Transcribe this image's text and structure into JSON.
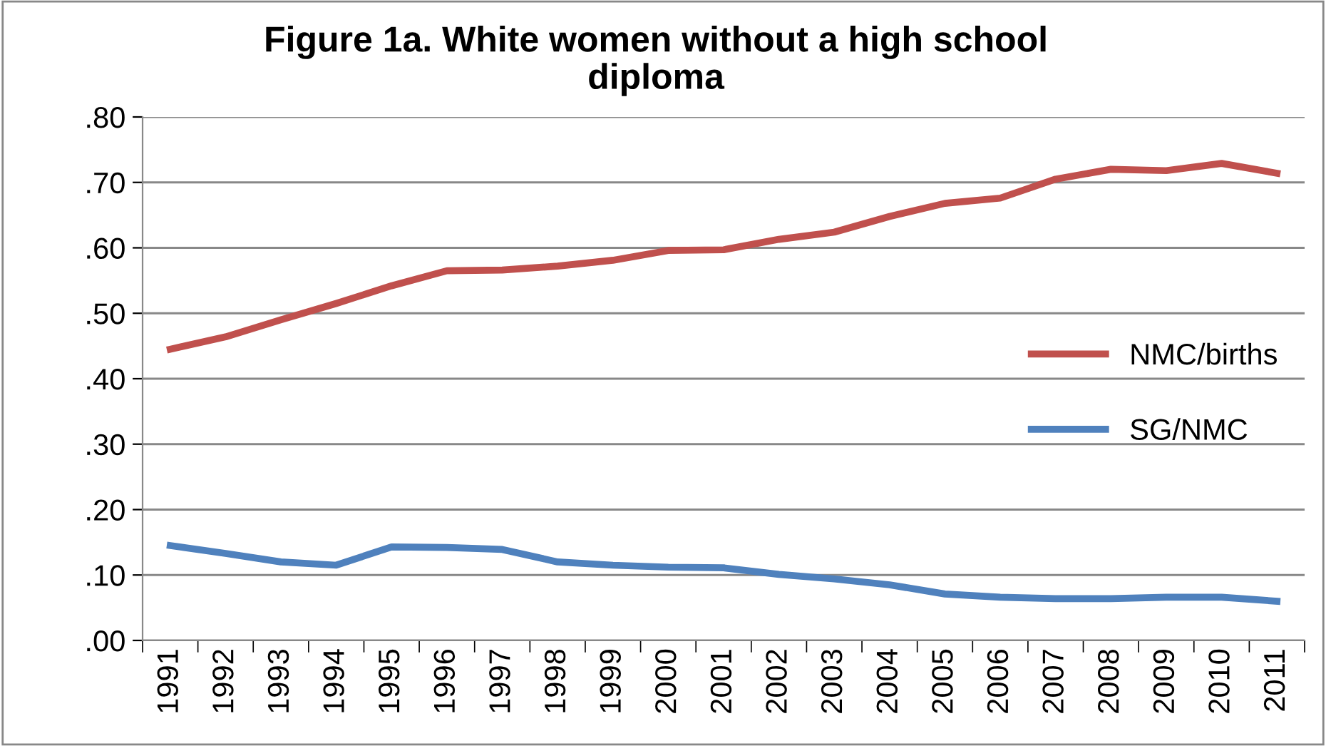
{
  "chart_data": {
    "type": "line",
    "title": "Figure 1a. White women without a high school\ndiploma",
    "categories": [
      "1991",
      "1992",
      "1993",
      "1994",
      "1995",
      "1996",
      "1997",
      "1998",
      "1999",
      "2000",
      "2001",
      "2002",
      "2003",
      "2004",
      "2005",
      "2006",
      "2007",
      "2008",
      "2009",
      "2010",
      "2011"
    ],
    "series": [
      {
        "name": "NMC/births",
        "color": "#c0504d",
        "values": [
          0.445,
          0.464,
          0.49,
          0.515,
          0.542,
          0.565,
          0.566,
          0.572,
          0.581,
          0.596,
          0.597,
          0.613,
          0.624,
          0.648,
          0.668,
          0.676,
          0.705,
          0.72,
          0.718,
          0.729,
          0.714
        ]
      },
      {
        "name": "SG/NMC",
        "color": "#4f81bd",
        "values": [
          0.145,
          0.133,
          0.12,
          0.115,
          0.143,
          0.142,
          0.139,
          0.12,
          0.115,
          0.112,
          0.111,
          0.101,
          0.094,
          0.085,
          0.071,
          0.066,
          0.064,
          0.064,
          0.066,
          0.066,
          0.06
        ]
      }
    ],
    "ylim": [
      0,
      0.8
    ],
    "yticks": [
      {
        "value": 0,
        "label": ".00"
      },
      {
        "value": 0.1,
        "label": ".10"
      },
      {
        "value": 0.2,
        "label": ".20"
      },
      {
        "value": 0.3,
        "label": ".30"
      },
      {
        "value": 0.4,
        "label": ".40"
      },
      {
        "value": 0.5,
        "label": ".50"
      },
      {
        "value": 0.6,
        "label": ".60"
      },
      {
        "value": 0.7,
        "label": ".70"
      },
      {
        "value": 0.8,
        "label": ".80"
      }
    ],
    "grid": "y",
    "legend": "right",
    "marker": "none",
    "line_style": "solid"
  }
}
